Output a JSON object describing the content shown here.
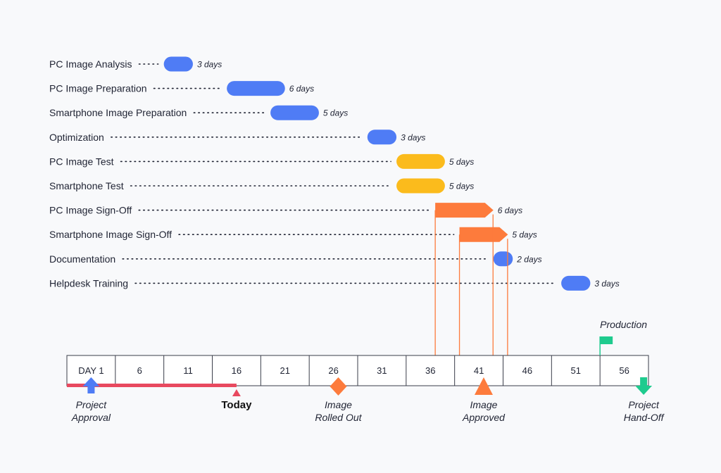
{
  "chart_data": {
    "type": "gantt",
    "x_unit": "day",
    "timeline": {
      "ticks": [
        "DAY 1",
        "6",
        "11",
        "16",
        "21",
        "26",
        "31",
        "36",
        "41",
        "46",
        "51",
        "56"
      ],
      "start_day": 1,
      "end_day": 61,
      "progress_to_day": 18.5
    },
    "tasks": [
      {
        "name": "PC Image Analysis",
        "start": 11,
        "duration": 3,
        "duration_label": "3 days",
        "style": "pill",
        "color": "#4f7cf5"
      },
      {
        "name": "PC Image Preparation",
        "start": 17.5,
        "duration": 6,
        "duration_label": "6 days",
        "style": "pill",
        "color": "#4f7cf5"
      },
      {
        "name": "Smartphone Image Preparation",
        "start": 22,
        "duration": 5,
        "duration_label": "5 days",
        "style": "pill",
        "color": "#4f7cf5"
      },
      {
        "name": "Optimization",
        "start": 32,
        "duration": 3,
        "duration_label": "3 days",
        "style": "pill",
        "color": "#4f7cf5"
      },
      {
        "name": "PC Image Test",
        "start": 35,
        "duration": 5,
        "duration_label": "5 days",
        "style": "pill",
        "color": "#fbbb1c"
      },
      {
        "name": "Smartphone Test",
        "start": 35,
        "duration": 5,
        "duration_label": "5 days",
        "style": "pill",
        "color": "#fbbb1c"
      },
      {
        "name": "PC Image Sign-Off",
        "start": 39,
        "duration": 6,
        "duration_label": "6 days",
        "style": "arrow",
        "color": "#fd7b3c"
      },
      {
        "name": "Smartphone Image Sign-Off",
        "start": 41.5,
        "duration": 5,
        "duration_label": "5 days",
        "style": "arrow",
        "color": "#fd7b3c"
      },
      {
        "name": "Documentation",
        "start": 45,
        "duration": 2,
        "duration_label": "2 days",
        "style": "pill",
        "color": "#4f7cf5"
      },
      {
        "name": "Helpdesk Training",
        "start": 52,
        "duration": 3,
        "duration_label": "3 days",
        "style": "pill",
        "color": "#4f7cf5"
      }
    ],
    "milestones": [
      {
        "label": [
          "Project",
          "Approval"
        ],
        "day": 3.5,
        "shape": "arrow-up",
        "color": "#4f7cf5"
      },
      {
        "label": [
          "Today"
        ],
        "day": 18.5,
        "shape": "small-triangle",
        "color": "#e8495f"
      },
      {
        "label": [
          "Image",
          "Rolled Out"
        ],
        "day": 29,
        "shape": "diamond",
        "color": "#fd7b3c"
      },
      {
        "label": [
          "Image",
          "Approved"
        ],
        "day": 44,
        "shape": "triangle",
        "color": "#fd7b3c"
      },
      {
        "label": [
          "Project",
          "Hand-Off"
        ],
        "day": 60.5,
        "shape": "arrow-down",
        "color": "#1fcb8e"
      }
    ],
    "flag": {
      "label": "Production",
      "day": 56,
      "color": "#1fcb8e"
    },
    "colors": {
      "blue": "#4f7cf5",
      "yellow": "#fbbb1c",
      "orange": "#fd7b3c",
      "red": "#e8495f",
      "green": "#1fcb8e"
    }
  }
}
